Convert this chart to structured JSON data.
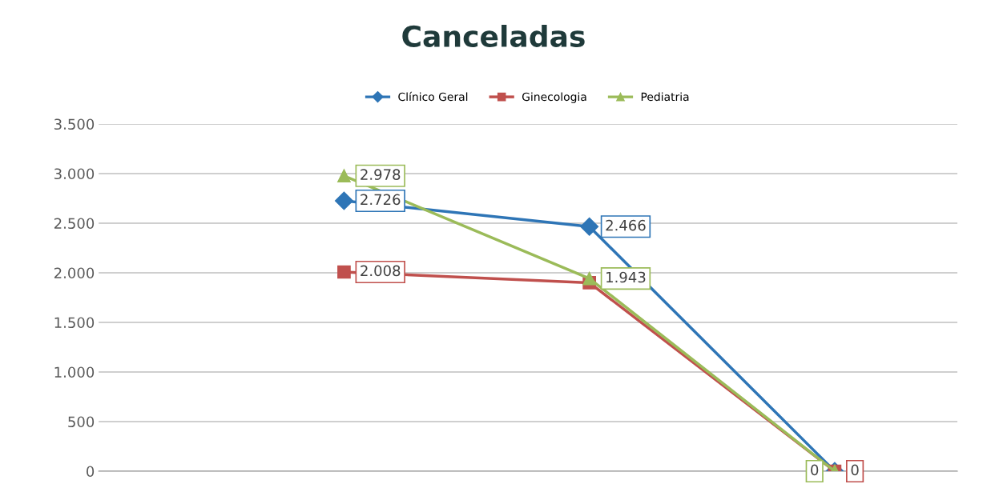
{
  "chart_data": {
    "type": "line",
    "title": "Canceladas",
    "categories": [
      null,
      null,
      null
    ],
    "series": [
      {
        "name": "Clínico Geral",
        "color": "#2e75b6",
        "marker": "diamond",
        "values": [
          2726,
          2466,
          0
        ],
        "value_labels": [
          "2.726",
          "2.466",
          null
        ]
      },
      {
        "name": "Ginecologia",
        "color": "#c0504d",
        "marker": "square",
        "values": [
          2008,
          1900,
          0
        ],
        "value_labels": [
          "2.008",
          null,
          "0"
        ]
      },
      {
        "name": "Pediatria",
        "color": "#9bbb59",
        "marker": "triangle",
        "values": [
          2978,
          1943,
          0
        ],
        "value_labels": [
          "2.978",
          "1.943",
          "0"
        ]
      }
    ],
    "ylim": [
      0,
      3500
    ],
    "yticks": [
      {
        "value": 0,
        "label": "0"
      },
      {
        "value": 500,
        "label": "500"
      },
      {
        "value": 1000,
        "label": "1.000"
      },
      {
        "value": 1500,
        "label": "1.500"
      },
      {
        "value": 2000,
        "label": "2.000"
      },
      {
        "value": 2500,
        "label": "2.500"
      },
      {
        "value": 3000,
        "label": "3.000"
      },
      {
        "value": 3500,
        "label": "3.500"
      }
    ],
    "grid": "y",
    "legend": "top"
  }
}
